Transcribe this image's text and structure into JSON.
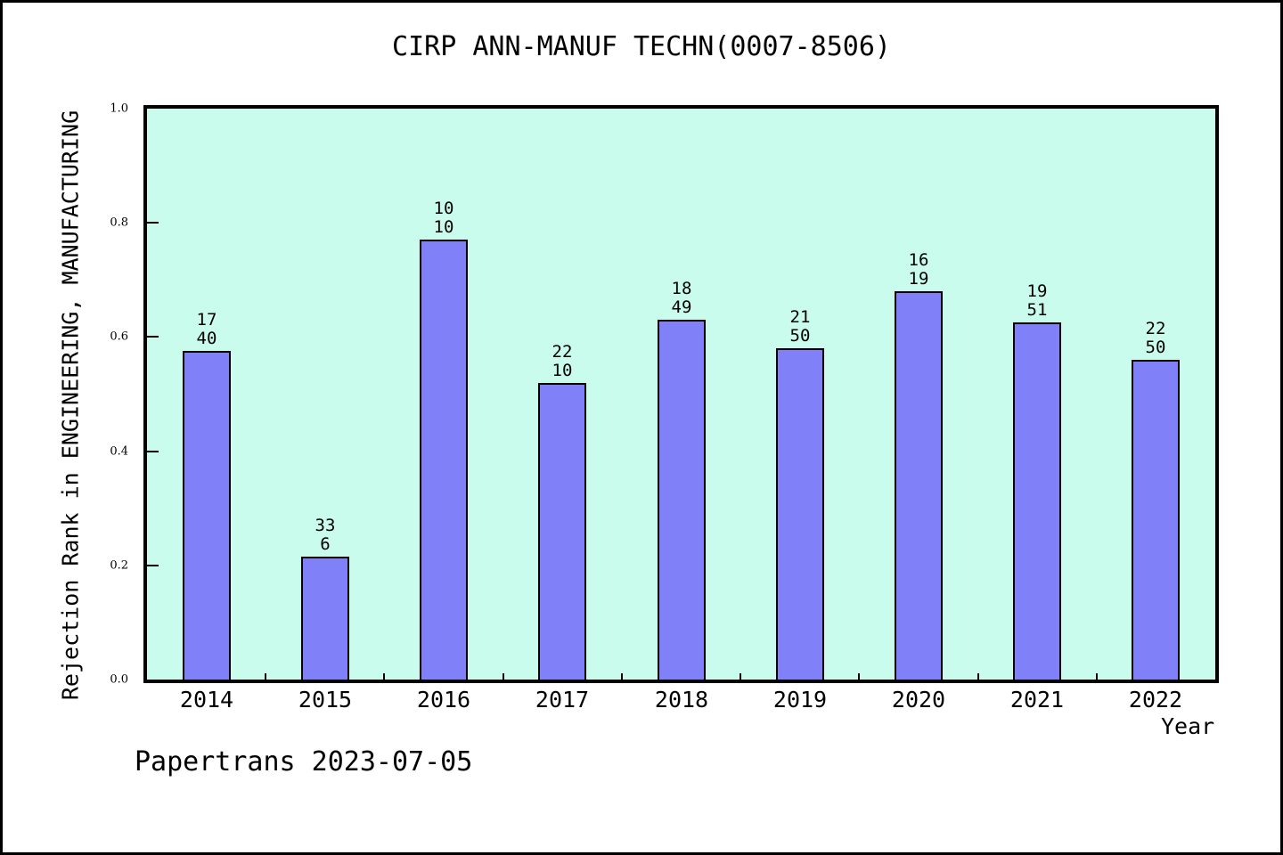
{
  "page": {
    "footer": "Papertrans 2023-07-05"
  },
  "chart_data": {
    "type": "bar",
    "title": "CIRP ANN-MANUF TECHN(0007-8506)",
    "xlabel": "Year",
    "ylabel": "Rejection Rank in ENGINEERING, MANUFACTURING",
    "categories": [
      "2014",
      "2015",
      "2016",
      "2017",
      "2018",
      "2019",
      "2020",
      "2021",
      "2022"
    ],
    "values": [
      0.575,
      0.215,
      0.77,
      0.52,
      0.63,
      0.58,
      0.68,
      0.625,
      0.56
    ],
    "bar_labels": [
      [
        "17",
        "40"
      ],
      [
        "33",
        "6"
      ],
      [
        "10",
        "10"
      ],
      [
        "22",
        "10"
      ],
      [
        "18",
        "49"
      ],
      [
        "21",
        "50"
      ],
      [
        "16",
        "19"
      ],
      [
        "19",
        "51"
      ],
      [
        "22",
        "50"
      ]
    ],
    "ylim": [
      0.0,
      1.0
    ],
    "yticks": [
      0.0,
      0.2,
      0.4,
      0.6,
      0.8,
      1.0
    ],
    "ytick_labels": [
      "0.0",
      "0.2",
      "0.4",
      "0.6",
      "0.8",
      "1.0"
    ],
    "grid": false,
    "legend": "none",
    "colors": {
      "bar_fill": "#8080f8",
      "bar_edge": "#000000",
      "plot_bg": "#c9fcec",
      "page_bg": "#ffffff",
      "text": "#000000"
    }
  }
}
